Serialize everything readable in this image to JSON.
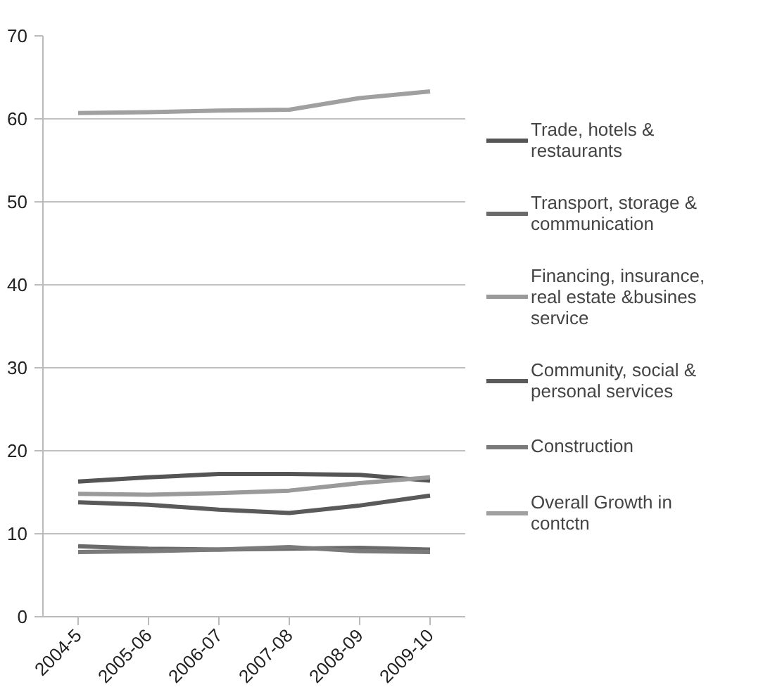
{
  "chart_data": {
    "type": "line",
    "categories": [
      "2004-5",
      "2005-06",
      "2006-07",
      "2007-08",
      "2008-09",
      "2009-10"
    ],
    "series": [
      {
        "name": "Trade, hotels & restaurants",
        "color": "#555555",
        "values": [
          16.3,
          16.8,
          17.2,
          17.2,
          17.1,
          16.4
        ]
      },
      {
        "name": "Transport, storage & communication",
        "color": "#6a6a6a",
        "values": [
          8.5,
          8.2,
          8.1,
          8.2,
          8.3,
          8.1
        ]
      },
      {
        "name": "Financing, insurance, real estate &busines service",
        "color": "#9a9a9a",
        "values": [
          14.8,
          14.7,
          14.9,
          15.2,
          16.1,
          16.8
        ]
      },
      {
        "name": "Community, social & personal services",
        "color": "#5a5a5a",
        "values": [
          13.8,
          13.5,
          12.9,
          12.5,
          13.4,
          14.6
        ]
      },
      {
        "name": "Construction",
        "color": "#7a7a7a",
        "values": [
          7.8,
          7.9,
          8.1,
          8.4,
          7.9,
          7.8
        ]
      },
      {
        "name": "Overall Growth in contctn",
        "color": "#a0a0a0",
        "values": [
          60.7,
          60.8,
          61.0,
          61.1,
          62.5,
          63.3
        ]
      }
    ],
    "ylim": [
      0,
      70
    ],
    "yticks": [
      0,
      10,
      20,
      30,
      40,
      50,
      60,
      70
    ],
    "grid": "y",
    "legend": "right",
    "marker": "none",
    "line_style": "solid"
  }
}
